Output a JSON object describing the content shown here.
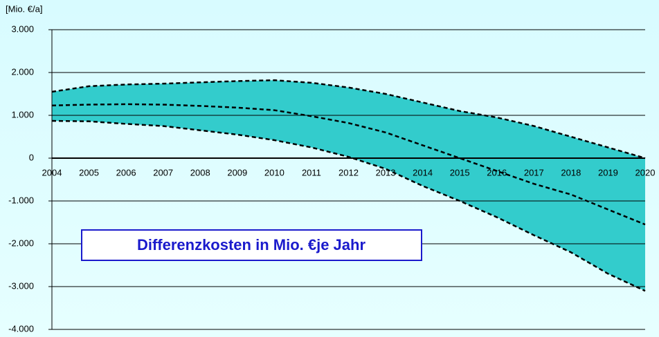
{
  "chart_data": {
    "type": "line",
    "y_unit_label": "[Mio. €/a]",
    "annotation": "Differenzkosten in Mio. €je Jahr",
    "x": [
      2004,
      2005,
      2006,
      2007,
      2008,
      2009,
      2010,
      2011,
      2012,
      2013,
      2014,
      2015,
      2016,
      2017,
      2018,
      2019,
      2020
    ],
    "xlim": [
      2004,
      2020
    ],
    "xticks": [
      2004,
      2005,
      2006,
      2007,
      2008,
      2009,
      2010,
      2011,
      2012,
      2013,
      2014,
      2015,
      2016,
      2017,
      2018,
      2019,
      2020
    ],
    "ylim": [
      -4000,
      3000
    ],
    "yticks": [
      {
        "value": -4000,
        "label": "-4.000"
      },
      {
        "value": -3000,
        "label": "-3.000"
      },
      {
        "value": -2000,
        "label": "-2.000"
      },
      {
        "value": -1000,
        "label": "-1.000"
      },
      0,
      {
        "value": 1000,
        "label": "1.000"
      },
      {
        "value": 2000,
        "label": "2.000"
      },
      {
        "value": 3000,
        "label": "3.000"
      }
    ],
    "grid": true,
    "band_color": "#33cccc",
    "series": [
      {
        "color": "#000000",
        "values": [
          1550,
          1680,
          1720,
          1740,
          1770,
          1800,
          1820,
          1760,
          1650,
          1500,
          1300,
          1100,
          950,
          750,
          500,
          250,
          0
        ]
      },
      {
        "color": "#000000",
        "values": [
          1230,
          1250,
          1260,
          1250,
          1220,
          1180,
          1120,
          980,
          820,
          600,
          300,
          0,
          -300,
          -600,
          -850,
          -1200,
          -1550
        ]
      },
      {
        "color": "#000000",
        "values": [
          870,
          860,
          800,
          750,
          650,
          550,
          420,
          250,
          30,
          -250,
          -650,
          -1000,
          -1380,
          -1800,
          -2200,
          -2700,
          -3100
        ]
      }
    ]
  }
}
